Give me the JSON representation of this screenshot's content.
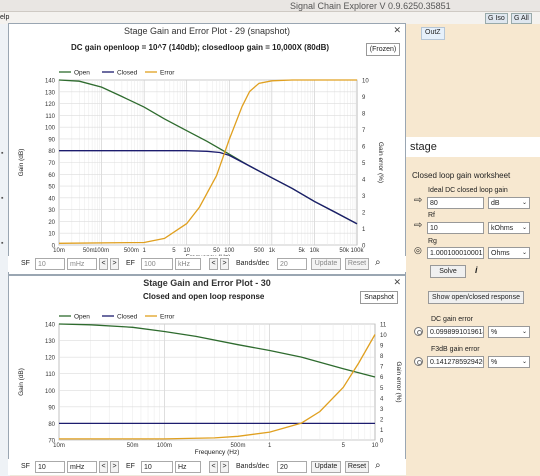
{
  "app": {
    "title": "Signal Chain Explorer V 0.9.6250.35851",
    "menu_fragment": "elp",
    "g_iso": "G Iso",
    "g_all": "G All",
    "outz": "OutZ"
  },
  "plot29": {
    "window_title": "Stage Gain and Error Plot - 29  (snapshot)",
    "subtitle": "DC gain openloop = 10^7 (140db); closedloop gain = 10,000X (80dB)",
    "button": "(Frozen)",
    "legend": [
      "Open",
      "Closed",
      "Error"
    ],
    "toolbar": {
      "sf_label": "SF",
      "sf_value": "10",
      "sf_unit": "mHz",
      "ef_label": "EF",
      "ef_value": "100",
      "ef_unit": "kHz",
      "bands_label": "Bands/dec",
      "bands_value": "20",
      "update": "Update",
      "reset": "Reset",
      "prev": "<",
      "next": ">"
    }
  },
  "plot30": {
    "window_title": "Stage Gain and Error Plot - 30",
    "subtitle": "Closed and open loop response",
    "button": "Snapshot",
    "legend": [
      "Open",
      "Closed",
      "Error"
    ],
    "toolbar": {
      "sf_label": "SF",
      "sf_value": "10",
      "sf_unit": "mHz",
      "ef_label": "EF",
      "ef_value": "10",
      "ef_unit": "Hz",
      "bands_label": "Bands/dec",
      "bands_value": "20",
      "update": "Update",
      "reset": "Reset",
      "prev": "<",
      "next": ">"
    }
  },
  "stage_panel": {
    "heading": "stage",
    "worksheet_title": "Closed loop gain worksheet",
    "ideal_label": "Ideal DC closed loop gain",
    "ideal_value": "80",
    "ideal_unit": "dB",
    "rf_label": "Rf",
    "rf_value": "10",
    "rf_unit": "kOhms",
    "rg_label": "Rg",
    "rg_value": "1.000100010001",
    "rg_unit": "Ohms",
    "solve": "Solve",
    "info": "i",
    "show_button": "Show open/closed response",
    "dc_error_label": "DC gain error",
    "dc_error_value": "0.09989910196146",
    "dc_error_unit": "%",
    "f3db_label": "F3dB gain error",
    "f3db_value": "0.14127859294202",
    "f3db_unit": "%"
  },
  "chart_data": [
    {
      "type": "line",
      "xlabel": "Frequency (Hz)",
      "ylabel": "Gain (dB)",
      "y2label": "Gain error (%)",
      "x_scale": "log",
      "xlim": [
        0.01,
        100000
      ],
      "ylim": [
        0,
        140
      ],
      "y2lim": [
        0,
        10
      ],
      "x_ticks": [
        "10m",
        "50m",
        "100m",
        "500m",
        "1",
        "5",
        "10",
        "50",
        "100",
        "500",
        "1k",
        "5k",
        "10k",
        "50k",
        "100k"
      ],
      "y_ticks": [
        0,
        10,
        20,
        30,
        40,
        50,
        60,
        70,
        80,
        90,
        100,
        110,
        120,
        130,
        140
      ],
      "y2_ticks": [
        0,
        1,
        2,
        3,
        4,
        5,
        6,
        7,
        8,
        9,
        10
      ],
      "legend_position": "top-left",
      "grid": true,
      "series": [
        {
          "name": "Open",
          "color": "#2e6b2e",
          "axis": "left",
          "x": [
            0.01,
            0.03,
            0.1,
            0.3,
            1,
            3,
            10,
            30,
            100,
            300,
            1000,
            3000,
            10000,
            30000,
            100000
          ],
          "y": [
            140,
            139,
            134,
            126,
            117,
            107,
            97,
            88,
            77,
            67,
            57,
            48,
            37,
            28,
            18
          ]
        },
        {
          "name": "Closed",
          "color": "#1c1c6e",
          "axis": "left",
          "x": [
            0.01,
            1,
            10,
            30,
            60,
            100,
            300,
            1000,
            3000,
            10000,
            30000,
            100000
          ],
          "y": [
            80,
            80,
            80,
            79.5,
            78.5,
            76,
            67,
            57,
            48,
            37,
            28,
            18
          ]
        },
        {
          "name": "Error",
          "color": "#e0a020",
          "axis": "right",
          "x": [
            0.01,
            1,
            3,
            10,
            20,
            50,
            100,
            200,
            300,
            500,
            1000,
            3000,
            10000,
            100000
          ],
          "y": [
            0.1,
            0.15,
            0.4,
            1.3,
            2.3,
            4.2,
            6.4,
            8.4,
            9.3,
            9.8,
            9.95,
            10,
            10,
            10
          ]
        }
      ]
    },
    {
      "type": "line",
      "xlabel": "Frequency (Hz)",
      "ylabel": "Gain (dB)",
      "y2label": "Gain error (%)",
      "x_scale": "log",
      "xlim": [
        0.01,
        10
      ],
      "ylim": [
        70,
        140
      ],
      "y2lim": [
        0,
        11
      ],
      "x_ticks": [
        "10m",
        "50m",
        "100m",
        "500m",
        "1",
        "5",
        "10"
      ],
      "y_ticks": [
        70,
        80,
        90,
        100,
        110,
        120,
        130,
        140
      ],
      "y2_ticks": [
        0,
        1,
        2,
        3,
        4,
        5,
        6,
        7,
        8,
        9,
        10,
        11
      ],
      "legend_position": "top-left",
      "grid": true,
      "series": [
        {
          "name": "Open",
          "color": "#2e6b2e",
          "axis": "left",
          "x": [
            0.01,
            0.02,
            0.05,
            0.1,
            0.2,
            0.5,
            1,
            2,
            5,
            10
          ],
          "y": [
            140,
            139.5,
            138,
            135.5,
            132.5,
            127.5,
            124,
            120,
            113,
            108
          ]
        },
        {
          "name": "Closed",
          "color": "#1c1c6e",
          "axis": "left",
          "x": [
            0.01,
            10
          ],
          "y": [
            80,
            80
          ]
        },
        {
          "name": "Error",
          "color": "#e0a020",
          "axis": "right",
          "x": [
            0.01,
            0.1,
            0.3,
            0.5,
            1,
            2,
            3,
            5,
            7,
            10
          ],
          "y": [
            0.1,
            0.1,
            0.2,
            0.35,
            0.75,
            1.6,
            2.7,
            5.0,
            7.3,
            10.0
          ]
        }
      ]
    }
  ]
}
